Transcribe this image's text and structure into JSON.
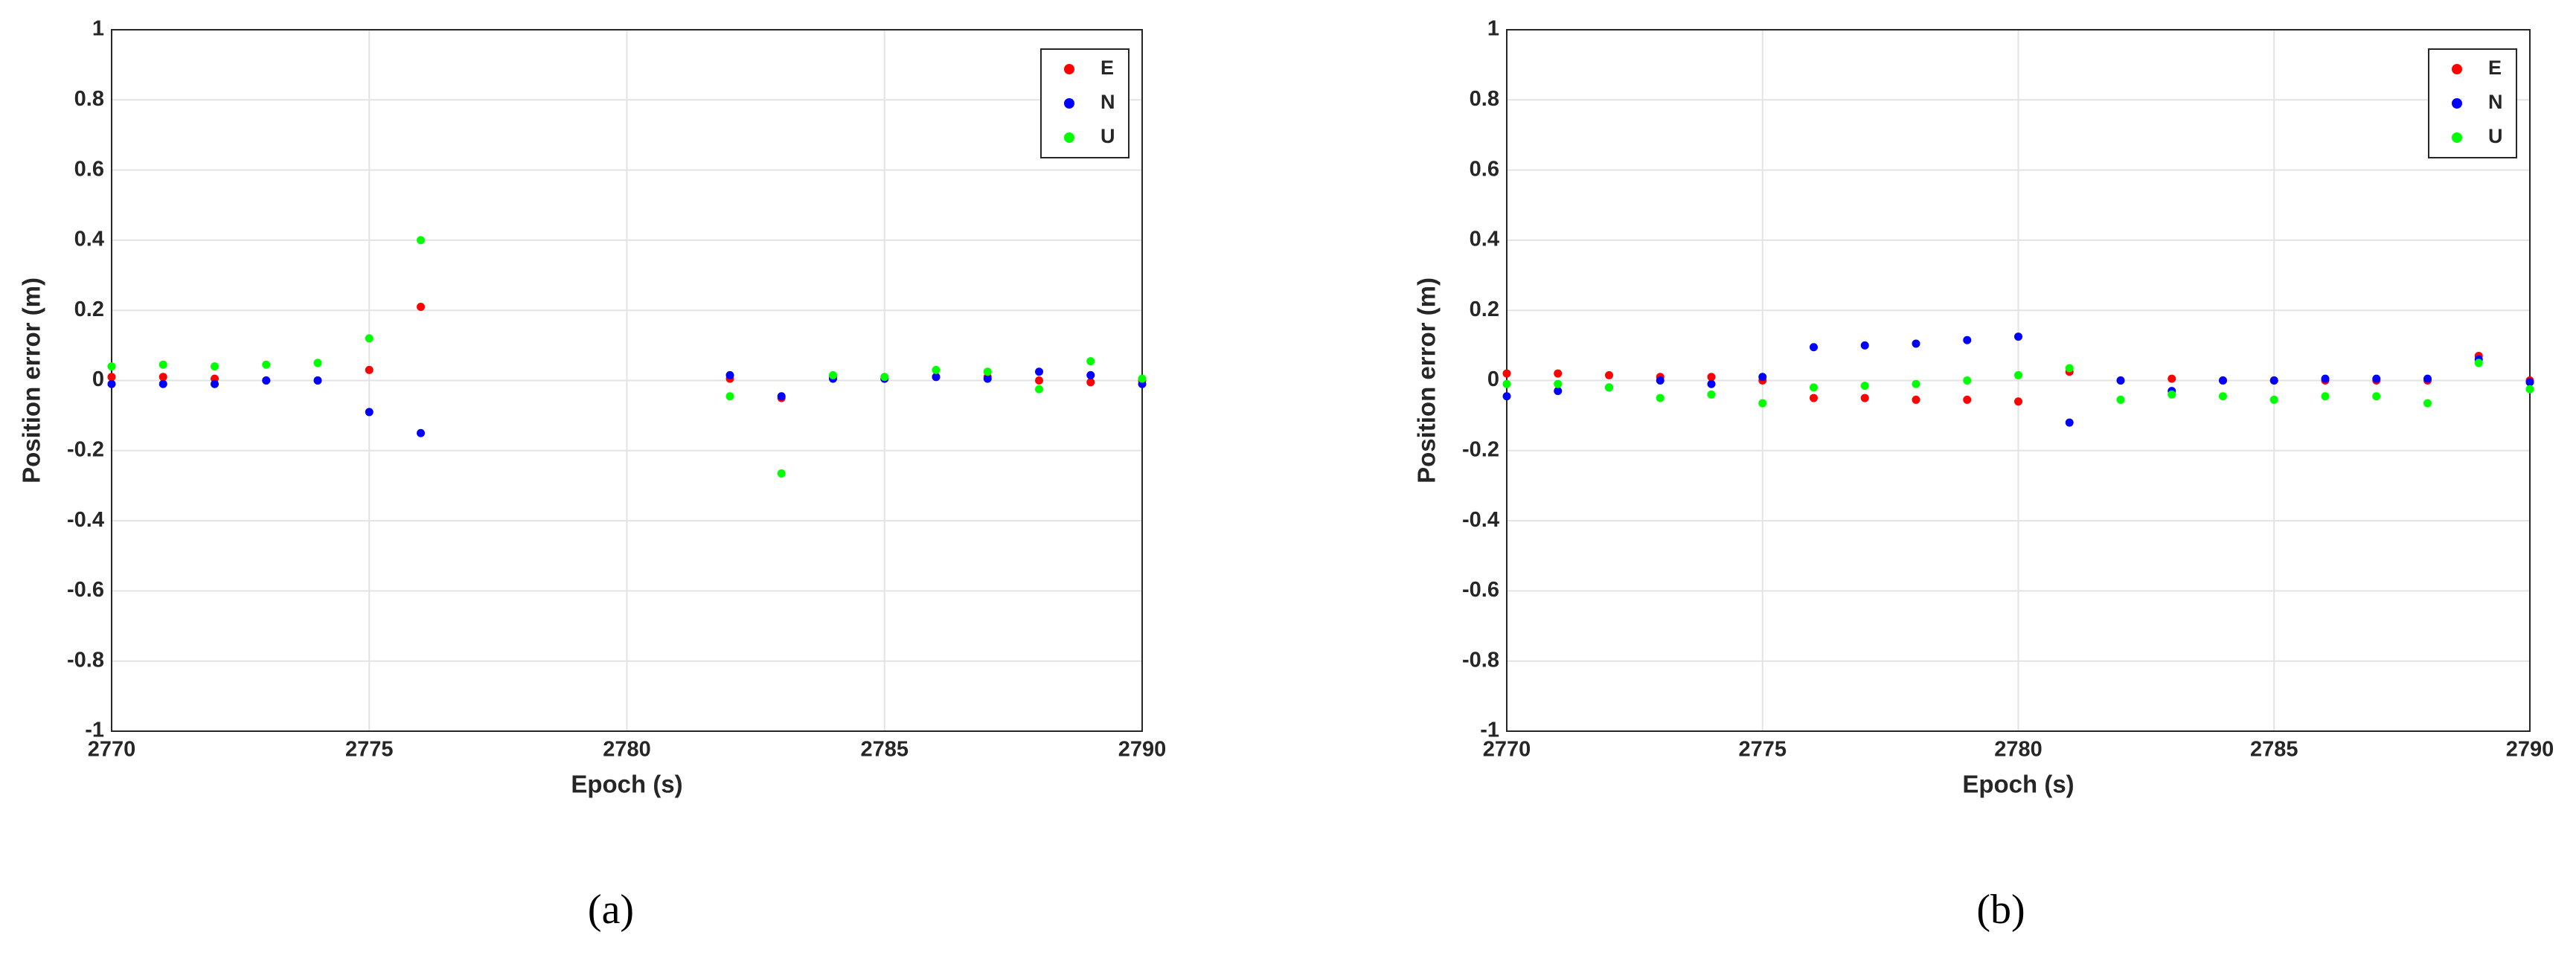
{
  "chart_data": [
    {
      "type": "scatter",
      "caption": "(a)",
      "xlabel": "Epoch (s)",
      "ylabel": "Position error (m)",
      "x": [
        2770,
        2771,
        2772,
        2773,
        2774,
        2775,
        2776,
        2777,
        2778,
        2779,
        2780,
        2781,
        2782,
        2783,
        2784,
        2785,
        2786,
        2787,
        2788,
        2789,
        2790
      ],
      "series": [
        {
          "name": "E",
          "color": "#ff0000",
          "values": [
            0.01,
            0.01,
            0.005,
            0,
            0,
            0.03,
            0.21,
            null,
            null,
            null,
            null,
            null,
            0.005,
            -0.05,
            0.01,
            0.005,
            0.01,
            0.01,
            0,
            -0.005,
            0
          ]
        },
        {
          "name": "N",
          "color": "#0000ff",
          "values": [
            -0.01,
            -0.01,
            -0.01,
            0,
            0,
            -0.09,
            -0.15,
            null,
            null,
            null,
            null,
            null,
            0.015,
            -0.045,
            0.005,
            0.005,
            0.01,
            0.005,
            0.025,
            0.015,
            -0.01
          ]
        },
        {
          "name": "U",
          "color": "#00ff00",
          "values": [
            0.04,
            0.045,
            0.04,
            0.045,
            0.05,
            0.12,
            0.4,
            null,
            null,
            null,
            null,
            null,
            -0.045,
            -0.265,
            0.015,
            0.01,
            0.03,
            0.025,
            -0.025,
            0.055,
            0.005
          ]
        }
      ],
      "xlim": [
        2770,
        2790
      ],
      "ylim": [
        -1,
        1
      ],
      "xticks": [
        2770,
        2775,
        2780,
        2785,
        2790
      ],
      "yticks": [
        -1,
        -0.8,
        -0.6,
        -0.4,
        -0.2,
        0,
        0.2,
        0.4,
        0.6,
        0.8,
        1
      ],
      "grid": true,
      "legend": "upper right"
    },
    {
      "type": "scatter",
      "caption": "(b)",
      "xlabel": "Epoch (s)",
      "ylabel": "Position error (m)",
      "x": [
        2770,
        2771,
        2772,
        2773,
        2774,
        2775,
        2776,
        2777,
        2778,
        2779,
        2780,
        2781,
        2782,
        2783,
        2784,
        2785,
        2786,
        2787,
        2788,
        2789,
        2790
      ],
      "series": [
        {
          "name": "E",
          "color": "#ff0000",
          "values": [
            0.02,
            0.02,
            0.015,
            0.01,
            0.01,
            0,
            -0.05,
            -0.05,
            -0.055,
            -0.055,
            -0.06,
            0.025,
            0,
            0.005,
            0,
            0,
            0,
            0,
            0,
            0.07,
            0
          ]
        },
        {
          "name": "N",
          "color": "#0000ff",
          "values": [
            -0.045,
            -0.03,
            -0.02,
            0,
            -0.01,
            0.01,
            0.095,
            0.1,
            0.105,
            0.115,
            0.125,
            -0.12,
            0,
            -0.03,
            0,
            0,
            0.005,
            0.005,
            0.005,
            0.06,
            -0.005
          ]
        },
        {
          "name": "U",
          "color": "#00ff00",
          "values": [
            -0.01,
            -0.01,
            -0.02,
            -0.05,
            -0.04,
            -0.065,
            -0.02,
            -0.015,
            -0.01,
            0,
            0.015,
            0.035,
            -0.055,
            -0.04,
            -0.045,
            -0.055,
            -0.045,
            -0.045,
            -0.065,
            0.05,
            -0.025
          ]
        }
      ],
      "xlim": [
        2770,
        2790
      ],
      "ylim": [
        -1,
        1
      ],
      "xticks": [
        2770,
        2775,
        2780,
        2785,
        2790
      ],
      "yticks": [
        -1,
        -0.8,
        -0.6,
        -0.4,
        -0.2,
        0,
        0.2,
        0.4,
        0.6,
        0.8,
        1
      ],
      "grid": true,
      "legend": "upper right"
    }
  ]
}
